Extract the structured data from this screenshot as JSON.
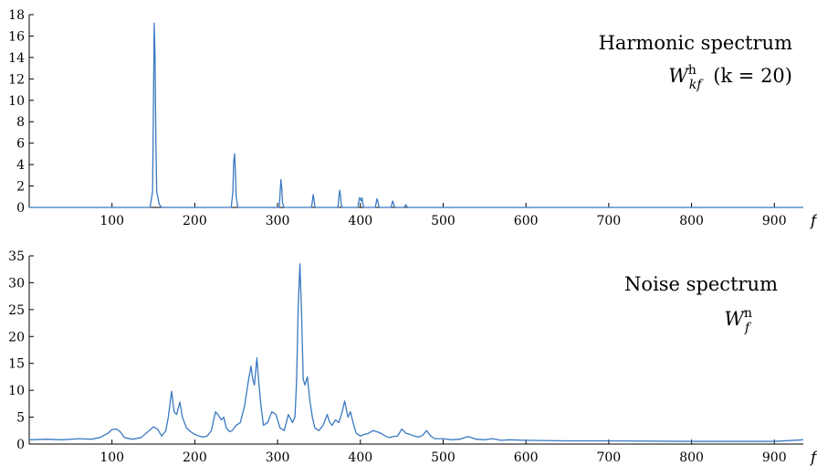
{
  "chart_data": [
    {
      "type": "line",
      "title": "",
      "annotation_line1": "Harmonic spectrum",
      "annotation_math": {
        "base": "W",
        "sup": "h",
        "sub": "kf",
        "cond": "(k = 20)"
      },
      "xlabel": "f",
      "ylabel": "",
      "xlim": [
        0,
        935
      ],
      "ylim": [
        0,
        18
      ],
      "xticks": [
        100,
        200,
        300,
        400,
        500,
        600,
        700,
        800,
        900
      ],
      "yticks": [
        0,
        2,
        4,
        6,
        8,
        10,
        12,
        14,
        16,
        18
      ],
      "grid": false,
      "color": "#3a79c1",
      "series": [
        {
          "x": [
            0,
            146,
            149,
            150,
            151,
            152,
            153,
            154,
            157,
            160,
            244,
            246,
            247,
            248,
            249,
            250,
            252,
            302,
            303,
            304,
            305,
            306,
            308,
            341,
            342,
            343,
            344,
            345,
            346,
            373,
            374,
            375,
            376,
            377,
            378,
            397,
            398,
            399,
            400,
            401,
            402,
            403,
            404,
            418,
            419,
            420,
            421,
            422,
            423,
            437,
            438,
            439,
            440,
            441,
            442,
            453,
            454,
            455,
            456,
            457,
            935
          ],
          "y": [
            0,
            0,
            1.5,
            9,
            17.2,
            14,
            6,
            1.5,
            0.3,
            0,
            0,
            1.5,
            4.2,
            5,
            3.5,
            1,
            0,
            0,
            1.3,
            2.6,
            1.8,
            0.4,
            0,
            0,
            0.6,
            1.2,
            0.7,
            0.1,
            0,
            0,
            0.9,
            1.6,
            1.1,
            0.2,
            0,
            0,
            0.5,
            0.9,
            0.8,
            0.6,
            0.9,
            0.4,
            0,
            0,
            0.4,
            0.8,
            0.6,
            0.2,
            0,
            0,
            0.3,
            0.6,
            0.4,
            0.1,
            0,
            0,
            0.15,
            0.25,
            0.1,
            0,
            0
          ]
        }
      ]
    },
    {
      "type": "line",
      "title": "",
      "annotation_line1": "Noise spectrum",
      "annotation_math": {
        "base": "W",
        "sup": "n",
        "sub": "f",
        "cond": ""
      },
      "xlabel": "f",
      "ylabel": "",
      "xlim": [
        0,
        935
      ],
      "ylim": [
        0,
        35
      ],
      "xticks": [
        100,
        200,
        300,
        400,
        500,
        600,
        700,
        800,
        900
      ],
      "yticks": [
        0,
        5,
        10,
        15,
        20,
        25,
        30,
        35
      ],
      "grid": false,
      "color": "#3a79c1",
      "series": [
        {
          "x": [
            0,
            20,
            40,
            60,
            75,
            85,
            95,
            100,
            105,
            110,
            115,
            125,
            135,
            145,
            150,
            155,
            160,
            165,
            168,
            172,
            175,
            178,
            182,
            185,
            190,
            195,
            200,
            205,
            210,
            215,
            220,
            225,
            228,
            232,
            235,
            238,
            242,
            245,
            250,
            255,
            260,
            265,
            268,
            270,
            272,
            275,
            277,
            280,
            283,
            288,
            293,
            298,
            303,
            308,
            313,
            318,
            321,
            323,
            325,
            327,
            329,
            331,
            333,
            336,
            339,
            342,
            345,
            350,
            355,
            360,
            363,
            366,
            370,
            374,
            378,
            381,
            385,
            388,
            392,
            395,
            400,
            405,
            410,
            415,
            420,
            425,
            430,
            435,
            440,
            445,
            450,
            455,
            460,
            465,
            470,
            475,
            480,
            485,
            490,
            500,
            510,
            520,
            530,
            540,
            550,
            560,
            570,
            580,
            600,
            650,
            700,
            800,
            900,
            935
          ],
          "y": [
            0.8,
            0.9,
            0.8,
            1.0,
            0.9,
            1.2,
            2.0,
            2.7,
            2.8,
            2.3,
            1.2,
            0.9,
            1.2,
            2.5,
            3.2,
            2.8,
            1.5,
            2.5,
            5.0,
            9.8,
            6.0,
            5.5,
            7.8,
            5.0,
            3.0,
            2.3,
            1.8,
            1.5,
            1.3,
            1.5,
            2.5,
            6.0,
            5.5,
            4.5,
            5.0,
            3.0,
            2.3,
            2.5,
            3.5,
            4.0,
            7.0,
            12.0,
            14.5,
            12.0,
            11.0,
            16.0,
            12.0,
            7.0,
            3.5,
            4.0,
            6.0,
            5.5,
            3.0,
            2.5,
            5.5,
            4.0,
            5.0,
            12.0,
            26.0,
            33.5,
            24.0,
            12.0,
            11.0,
            12.5,
            8.0,
            5.0,
            3.0,
            2.5,
            3.5,
            5.5,
            4.0,
            3.5,
            4.5,
            4.0,
            6.0,
            8.0,
            5.0,
            6.0,
            3.5,
            2.0,
            1.5,
            1.8,
            2.0,
            2.5,
            2.3,
            2.0,
            1.5,
            1.2,
            1.4,
            1.5,
            2.8,
            2.0,
            1.8,
            1.5,
            1.3,
            1.6,
            2.5,
            1.5,
            1.0,
            1.0,
            0.8,
            0.9,
            1.4,
            0.9,
            0.8,
            1.0,
            0.7,
            0.8,
            0.7,
            0.6,
            0.6,
            0.5,
            0.5,
            0.8
          ]
        }
      ]
    }
  ]
}
